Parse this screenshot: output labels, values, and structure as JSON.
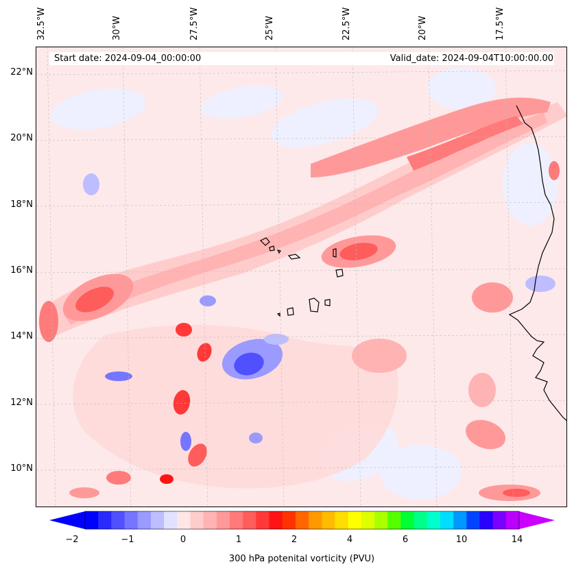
{
  "map": {
    "start_date": "Start date: 2024-09-04_00:00:00",
    "valid_date": "Valid_date: 2024-09-04T10:00:00.00",
    "lon_labels": [
      "32.5°W",
      "30°W",
      "27.5°W",
      "25°W",
      "22.5°W",
      "20°W",
      "17.5°W"
    ],
    "lat_labels": [
      "22°N",
      "20°N",
      "18°N",
      "16°N",
      "14°N",
      "12°N",
      "10°N"
    ],
    "lon_range_deg": [
      -32.7,
      -15.2
    ],
    "lat_range_deg": [
      8.9,
      22.8
    ]
  },
  "colorbar": {
    "label": "300 hPa potenital vorticity (PVU)",
    "tick_labels": [
      "−2",
      "−1",
      "0",
      "1",
      "2",
      "4",
      "6",
      "10",
      "14"
    ],
    "colors": [
      "#0000ff",
      "#2a2aff",
      "#5050ff",
      "#7575ff",
      "#9a9aff",
      "#bdbdff",
      "#e2e2ff",
      "#ffe6e6",
      "#ffcccc",
      "#ffb3b3",
      "#ff9999",
      "#ff7a7a",
      "#ff5c5c",
      "#ff3838",
      "#ff1414",
      "#ff3300",
      "#ff6600",
      "#ff9900",
      "#ffbb00",
      "#ffdd00",
      "#ffff00",
      "#ddff00",
      "#aaff00",
      "#55ff00",
      "#00ff33",
      "#00ff88",
      "#00ffcc",
      "#00ddff",
      "#0099ff",
      "#0044ff",
      "#2a00ff",
      "#7a00ff",
      "#bb00ff"
    ],
    "extend_low_color": "#0000ff",
    "extend_high_color": "#cc00ff"
  }
}
